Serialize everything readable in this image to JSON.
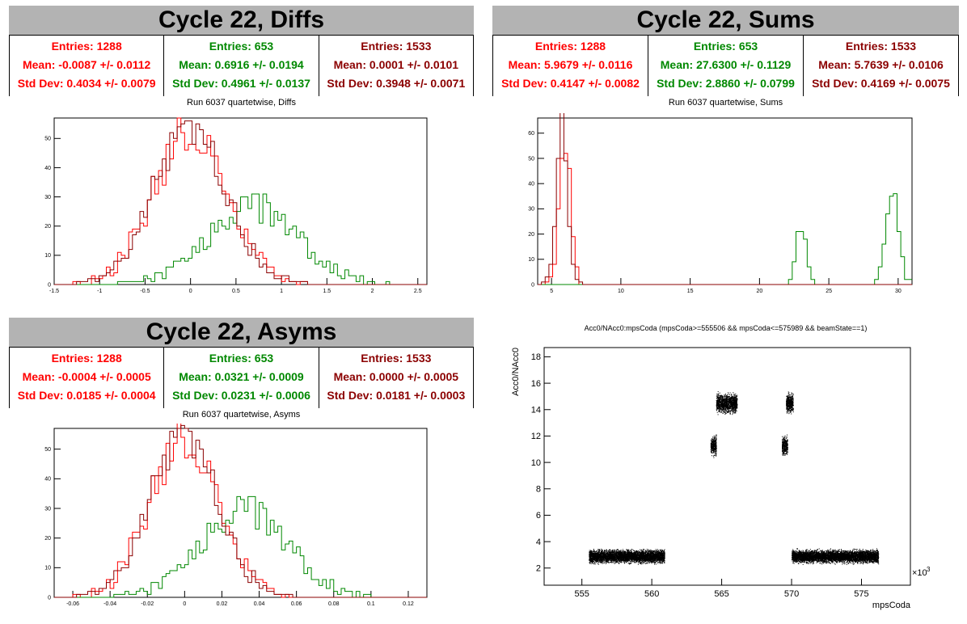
{
  "panels": {
    "diffs": {
      "banner": "Cycle 22, Diffs",
      "run_title": "Run 6037 quartetwise, Diffs",
      "stats": [
        {
          "entries": "Entries: 1288",
          "mean": "Mean: -0.0087 +/- 0.0112",
          "std": "Std Dev: 0.4034 +/- 0.0079"
        },
        {
          "entries": "Entries: 653",
          "mean": "Mean: 0.6916 +/- 0.0194",
          "std": "Std Dev: 0.4961 +/- 0.0137"
        },
        {
          "entries": "Entries: 1533",
          "mean": "Mean: 0.0001 +/- 0.0101",
          "std": "Std Dev: 0.3948 +/- 0.0071"
        }
      ]
    },
    "sums": {
      "banner": "Cycle 22, Sums",
      "run_title": "Run 6037 quartetwise, Sums",
      "stats": [
        {
          "entries": "Entries: 1288",
          "mean": "Mean: 5.9679 +/- 0.0116",
          "std": "Std Dev: 0.4147 +/- 0.0082"
        },
        {
          "entries": "Entries: 653",
          "mean": "Mean: 27.6300 +/- 0.1129",
          "std": "Std Dev: 2.8860 +/- 0.0799"
        },
        {
          "entries": "Entries: 1533",
          "mean": "Mean: 5.7639 +/- 0.0106",
          "std": "Std Dev: 0.4169 +/- 0.0075"
        }
      ]
    },
    "asyms": {
      "banner": "Cycle 22, Asyms",
      "run_title": "Run 6037 quartetwise, Asyms",
      "stats": [
        {
          "entries": "Entries: 1288",
          "mean": "Mean: -0.0004 +/- 0.0005",
          "std": "Std Dev: 0.0185 +/- 0.0004"
        },
        {
          "entries": "Entries: 653",
          "mean": "Mean: 0.0321 +/- 0.0009",
          "std": "Std Dev: 0.0231 +/- 0.0006"
        },
        {
          "entries": "Entries: 1533",
          "mean": "Mean: 0.0000 +/- 0.0005",
          "std": "Std Dev: 0.0181 +/- 0.0003"
        }
      ]
    },
    "scatter": {
      "title": "Acc0/NAcc0:mpsCoda (mpsCoda>=555506 && mpsCoda<=575989 && beamState==1)"
    }
  },
  "colors": {
    "series1": "#ff0000",
    "series2": "#008800",
    "series3": "#8b0000",
    "banner": "#b3b3b3"
  },
  "chart_data": [
    {
      "type": "histogram",
      "id": "diffs",
      "xlim": [
        -1.5,
        2.6
      ],
      "ylim": [
        0,
        57
      ],
      "xticks": [
        -1.5,
        -1,
        -0.5,
        0,
        0.5,
        1,
        1.5,
        2,
        2.5
      ],
      "xtick_labels": [
        "-1.5",
        "-1",
        "-0.5",
        "0",
        "0.5",
        "1",
        "1.5",
        "2",
        "2.5"
      ],
      "yticks": [
        0,
        10,
        20,
        30,
        40,
        50
      ],
      "ytick_labels": [
        "0",
        "10",
        "20",
        "30",
        "40",
        "50"
      ],
      "series": [
        {
          "color": "#ff0000",
          "mean": -0.0087,
          "sigma": 0.4034,
          "entries": 1288,
          "peak": 52
        },
        {
          "color": "#008800",
          "mean": 0.6916,
          "sigma": 0.4961,
          "entries": 653,
          "peak": 27
        },
        {
          "color": "#8b0000",
          "mean": 0.0001,
          "sigma": 0.3948,
          "entries": 1533,
          "peak": 54
        }
      ]
    },
    {
      "type": "histogram",
      "id": "sums",
      "xlim": [
        4,
        31
      ],
      "ylim": [
        0,
        66
      ],
      "xticks": [
        5,
        10,
        15,
        20,
        25,
        30
      ],
      "xtick_labels": [
        "5",
        "10",
        "15",
        "20",
        "25",
        "30"
      ],
      "yticks": [
        0,
        10,
        20,
        30,
        40,
        50,
        60
      ],
      "ytick_labels": [
        "0",
        "10",
        "20",
        "30",
        "40",
        "50",
        "60"
      ],
      "series": [
        {
          "color": "#ff0000",
          "mean": 5.97,
          "sigma": 0.41,
          "entries": 1288,
          "peak": 57
        },
        {
          "color": "#008800",
          "mean": 23.0,
          "sigma": 0.35,
          "entries": 200,
          "peak": 22
        },
        {
          "color": "#008800",
          "mean": 29.6,
          "sigma": 0.45,
          "entries": 453,
          "peak": 41
        },
        {
          "color": "#8b0000",
          "mean": 5.76,
          "sigma": 0.42,
          "entries": 1533,
          "peak": 63
        }
      ]
    },
    {
      "type": "histogram",
      "id": "asyms",
      "xlim": [
        -0.07,
        0.13
      ],
      "ylim": [
        0,
        57
      ],
      "xticks": [
        -0.06,
        -0.04,
        -0.02,
        0,
        0.02,
        0.04,
        0.06,
        0.08,
        0.1,
        0.12
      ],
      "xtick_labels": [
        "-0.06",
        "-0.04",
        "-0.02",
        "0",
        "0.02",
        "0.04",
        "0.06",
        "0.08",
        "0.1",
        "0.12"
      ],
      "yticks": [
        0,
        10,
        20,
        30,
        40,
        50
      ],
      "ytick_labels": [
        "0",
        "10",
        "20",
        "30",
        "40",
        "50"
      ],
      "series": [
        {
          "color": "#ff0000",
          "mean": -0.0004,
          "sigma": 0.0185,
          "entries": 1288,
          "peak": 53
        },
        {
          "color": "#008800",
          "mean": 0.0321,
          "sigma": 0.0231,
          "entries": 653,
          "peak": 30
        },
        {
          "color": "#8b0000",
          "mean": 0.0,
          "sigma": 0.0181,
          "entries": 1533,
          "peak": 55
        }
      ]
    },
    {
      "type": "scatter",
      "id": "scatter",
      "title": "Acc0/NAcc0:mpsCoda (mpsCoda>=555506 && mpsCoda<=575989 && beamState==1)",
      "xlabel": "mpsCoda",
      "ylabel": "Acc0/NAcc0",
      "x_exponent_label": "×10",
      "x_exponent": "3",
      "xlim": [
        552.3,
        578.5
      ],
      "ylim": [
        0.7,
        18.7
      ],
      "xticks": [
        555,
        560,
        565,
        570,
        575
      ],
      "xtick_labels": [
        "555",
        "560",
        "565",
        "570",
        "575"
      ],
      "yticks": [
        2,
        4,
        6,
        8,
        10,
        12,
        14,
        16,
        18
      ],
      "ytick_labels": [
        "2",
        "4",
        "6",
        "8",
        "10",
        "12",
        "14",
        "16",
        "18"
      ],
      "clusters": [
        {
          "x": [
            555.5,
            560.9
          ],
          "y_center": 2.9,
          "y_spread": 0.4
        },
        {
          "x": [
            564.2,
            564.6
          ],
          "y_center": 11.3,
          "y_spread": 0.6
        },
        {
          "x": [
            564.6,
            566.1
          ],
          "y_center": 14.5,
          "y_spread": 0.6
        },
        {
          "x": [
            569.3,
            569.7
          ],
          "y_center": 11.3,
          "y_spread": 0.6
        },
        {
          "x": [
            569.6,
            570.1
          ],
          "y_center": 14.5,
          "y_spread": 0.6
        },
        {
          "x": [
            570.0,
            576.2
          ],
          "y_center": 2.9,
          "y_spread": 0.4
        }
      ]
    }
  ]
}
